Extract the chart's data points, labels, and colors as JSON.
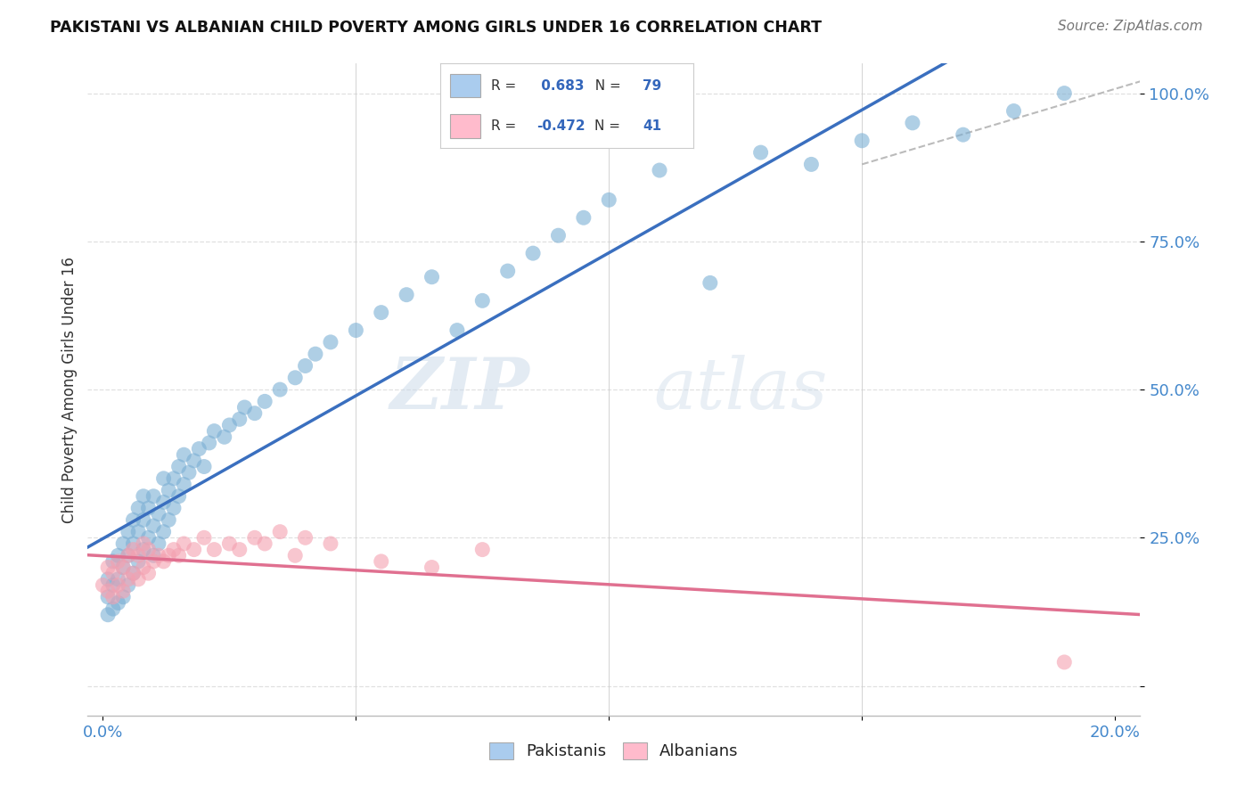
{
  "title": "PAKISTANI VS ALBANIAN CHILD POVERTY AMONG GIRLS UNDER 16 CORRELATION CHART",
  "source": "Source: ZipAtlas.com",
  "ylabel": "Child Poverty Among Girls Under 16",
  "x_ticks": [
    0.0,
    0.05,
    0.1,
    0.15,
    0.2
  ],
  "x_tick_labels": [
    "0.0%",
    "",
    "",
    "",
    "20.0%"
  ],
  "y_ticks": [
    0.0,
    0.25,
    0.5,
    0.75,
    1.0
  ],
  "y_tick_labels": [
    "",
    "25.0%",
    "50.0%",
    "75.0%",
    "100.0%"
  ],
  "x_min": -0.003,
  "x_max": 0.205,
  "y_min": -0.05,
  "y_max": 1.05,
  "pakistani_color": "#7BAFD4",
  "albanian_color": "#F4A0B0",
  "regression_pakistani_color": "#3A6FBF",
  "regression_albanian_color": "#E07090",
  "R_pakistani": 0.683,
  "N_pakistani": 79,
  "R_albanian": -0.472,
  "N_albanian": 41,
  "background_color": "#FFFFFF",
  "grid_color": "#E0E0E0",
  "grid_linestyle": "--",
  "pak_x": [
    0.001,
    0.001,
    0.001,
    0.002,
    0.002,
    0.002,
    0.003,
    0.003,
    0.003,
    0.004,
    0.004,
    0.004,
    0.005,
    0.005,
    0.005,
    0.006,
    0.006,
    0.006,
    0.007,
    0.007,
    0.007,
    0.008,
    0.008,
    0.008,
    0.009,
    0.009,
    0.01,
    0.01,
    0.01,
    0.011,
    0.011,
    0.012,
    0.012,
    0.012,
    0.013,
    0.013,
    0.014,
    0.014,
    0.015,
    0.015,
    0.016,
    0.016,
    0.017,
    0.018,
    0.019,
    0.02,
    0.021,
    0.022,
    0.024,
    0.025,
    0.027,
    0.028,
    0.03,
    0.032,
    0.035,
    0.038,
    0.04,
    0.042,
    0.045,
    0.05,
    0.055,
    0.06,
    0.065,
    0.07,
    0.075,
    0.08,
    0.085,
    0.09,
    0.095,
    0.1,
    0.11,
    0.12,
    0.13,
    0.14,
    0.15,
    0.16,
    0.17,
    0.18,
    0.19
  ],
  "pak_y": [
    0.12,
    0.15,
    0.18,
    0.13,
    0.17,
    0.21,
    0.14,
    0.18,
    0.22,
    0.15,
    0.2,
    0.24,
    0.17,
    0.22,
    0.26,
    0.19,
    0.24,
    0.28,
    0.21,
    0.26,
    0.3,
    0.23,
    0.28,
    0.32,
    0.25,
    0.3,
    0.22,
    0.27,
    0.32,
    0.24,
    0.29,
    0.26,
    0.31,
    0.35,
    0.28,
    0.33,
    0.3,
    0.35,
    0.32,
    0.37,
    0.34,
    0.39,
    0.36,
    0.38,
    0.4,
    0.37,
    0.41,
    0.43,
    0.42,
    0.44,
    0.45,
    0.47,
    0.46,
    0.48,
    0.5,
    0.52,
    0.54,
    0.56,
    0.58,
    0.6,
    0.63,
    0.66,
    0.69,
    0.6,
    0.65,
    0.7,
    0.73,
    0.76,
    0.79,
    0.82,
    0.87,
    0.68,
    0.9,
    0.88,
    0.92,
    0.95,
    0.93,
    0.97,
    1.0
  ],
  "alb_x": [
    0.0,
    0.001,
    0.001,
    0.002,
    0.002,
    0.003,
    0.003,
    0.004,
    0.004,
    0.005,
    0.005,
    0.006,
    0.006,
    0.007,
    0.007,
    0.008,
    0.008,
    0.009,
    0.009,
    0.01,
    0.011,
    0.012,
    0.013,
    0.014,
    0.015,
    0.016,
    0.018,
    0.02,
    0.022,
    0.025,
    0.027,
    0.03,
    0.032,
    0.035,
    0.038,
    0.04,
    0.045,
    0.055,
    0.065,
    0.075,
    0.19
  ],
  "alb_y": [
    0.17,
    0.16,
    0.2,
    0.15,
    0.19,
    0.17,
    0.21,
    0.16,
    0.2,
    0.18,
    0.22,
    0.19,
    0.23,
    0.18,
    0.22,
    0.2,
    0.24,
    0.19,
    0.23,
    0.21,
    0.22,
    0.21,
    0.22,
    0.23,
    0.22,
    0.24,
    0.23,
    0.25,
    0.23,
    0.24,
    0.23,
    0.25,
    0.24,
    0.26,
    0.22,
    0.25,
    0.24,
    0.21,
    0.2,
    0.23,
    0.04
  ],
  "ref_line_x": [
    0.15,
    0.205
  ],
  "ref_line_y": [
    0.88,
    1.02
  ],
  "watermark_zip": "ZIP",
  "watermark_atlas": "atlas",
  "legend_pak_label": "R =  0.683   N = 79",
  "legend_alb_label": "R = -0.472   N = 41",
  "bottom_legend_pak": "Pakistanis",
  "bottom_legend_alb": "Albanians"
}
